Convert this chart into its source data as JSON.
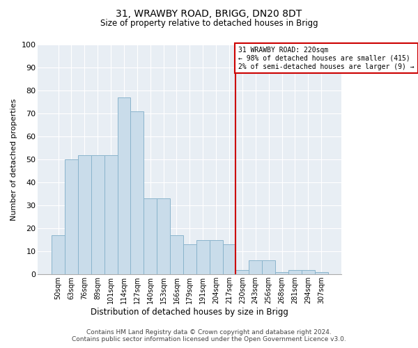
{
  "title1": "31, WRAWBY ROAD, BRIGG, DN20 8DT",
  "title2": "Size of property relative to detached houses in Brigg",
  "xlabel": "Distribution of detached houses by size in Brigg",
  "ylabel": "Number of detached properties",
  "categories": [
    "50sqm",
    "63sqm",
    "76sqm",
    "89sqm",
    "101sqm",
    "114sqm",
    "127sqm",
    "140sqm",
    "153sqm",
    "166sqm",
    "179sqm",
    "191sqm",
    "204sqm",
    "217sqm",
    "230sqm",
    "243sqm",
    "256sqm",
    "268sqm",
    "281sqm",
    "294sqm",
    "307sqm"
  ],
  "bar_values": [
    17,
    50,
    52,
    52,
    52,
    77,
    71,
    33,
    33,
    17,
    13,
    15,
    15,
    13,
    2,
    6,
    6,
    1,
    2,
    2,
    1
  ],
  "bar_color": "#c9dcea",
  "bar_edge_color": "#8ab4cc",
  "annotation_title": "31 WRAWBY ROAD: 220sqm",
  "annotation_line1": "← 98% of detached houses are smaller (415)",
  "annotation_line2": "2% of semi-detached houses are larger (9) →",
  "vline_color": "#cc0000",
  "annotation_box_color": "#cc0000",
  "vline_category": "217sqm",
  "ylim": [
    0,
    100
  ],
  "yticks": [
    0,
    10,
    20,
    30,
    40,
    50,
    60,
    70,
    80,
    90,
    100
  ],
  "footer1": "Contains HM Land Registry data © Crown copyright and database right 2024.",
  "footer2": "Contains public sector information licensed under the Open Government Licence v3.0.",
  "bg_color": "#e8eef4",
  "fig_bg_color": "#ffffff"
}
